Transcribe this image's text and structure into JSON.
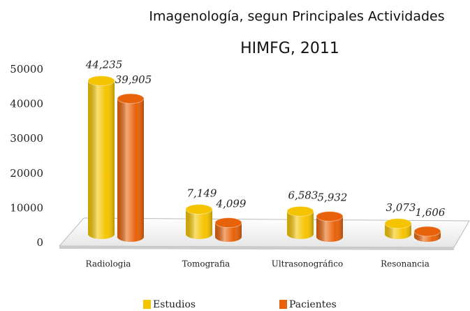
{
  "chart_data": {
    "type": "bar3d",
    "title": "Imagenología, segun Principales Actividades",
    "subtitle": "HIMFG, 2011",
    "categories": [
      "Radiologia",
      "Tomografia",
      "Ultrasonográfico",
      "Resonancia"
    ],
    "series": [
      {
        "name": "Estudios",
        "color": "#f5c400",
        "values": [
          44235,
          7149,
          6583,
          3073
        ],
        "value_labels": [
          "44,235",
          "7,149",
          "6,583",
          "3,073"
        ]
      },
      {
        "name": "Pacientes",
        "color": "#e8620a",
        "values": [
          39905,
          4099,
          5932,
          1606
        ],
        "value_labels": [
          "39,905",
          "4,099",
          "5,932",
          "1,606"
        ]
      }
    ],
    "ylim": [
      0,
      50000
    ],
    "yticks": [
      0,
      10000,
      20000,
      30000,
      40000,
      50000
    ],
    "legend": "bottom"
  }
}
